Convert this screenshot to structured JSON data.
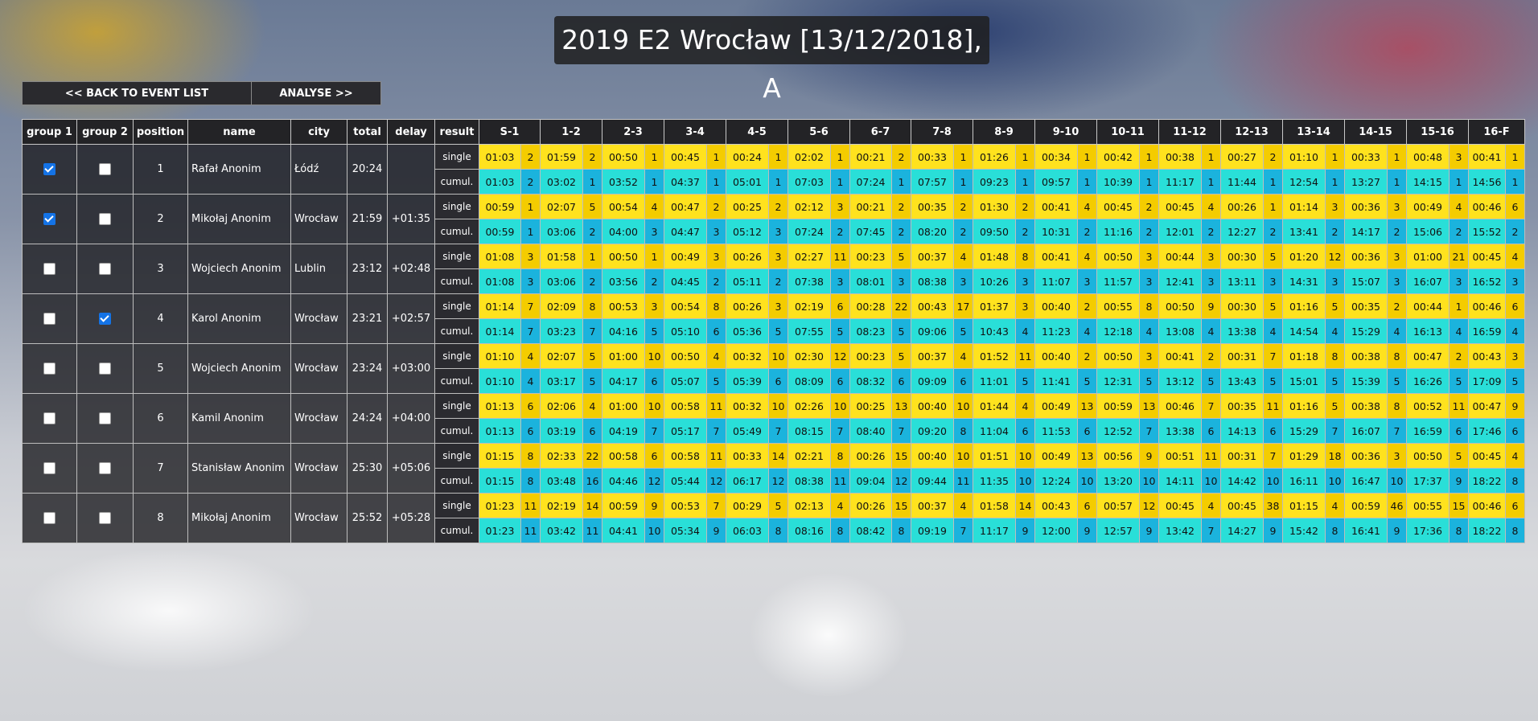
{
  "title": "2019 E2 Wrocław [13/12/2018], A",
  "nav": {
    "back_label": "<< BACK TO EVENT LIST",
    "analyse_label": "ANALYSE >>"
  },
  "headers": {
    "group1": "group 1",
    "group2": "group 2",
    "position": "position",
    "name": "name",
    "city": "city",
    "total": "total",
    "delay": "delay",
    "result": "result"
  },
  "row_labels": {
    "single": "single",
    "cumul": "cumul."
  },
  "splits": [
    "S-1",
    "1-2",
    "2-3",
    "3-4",
    "4-5",
    "5-6",
    "6-7",
    "7-8",
    "8-9",
    "9-10",
    "10-11",
    "11-12",
    "12-13",
    "13-14",
    "14-15",
    "15-16",
    "16-F"
  ],
  "colors": {
    "single_time": "#ffe21e",
    "single_place": "#f4cc00",
    "cumul_time": "#29dfd8",
    "cumul_place": "#1bb3dd",
    "checkbox_on": "#1473e6"
  },
  "runners": [
    {
      "group1": true,
      "group2": false,
      "position": "1",
      "name": "Rafał Anonim",
      "city": "Łódź",
      "total": "20:24",
      "delay": "",
      "single": [
        [
          "01:03",
          "2"
        ],
        [
          "01:59",
          "2"
        ],
        [
          "00:50",
          "1"
        ],
        [
          "00:45",
          "1"
        ],
        [
          "00:24",
          "1"
        ],
        [
          "02:02",
          "1"
        ],
        [
          "00:21",
          "2"
        ],
        [
          "00:33",
          "1"
        ],
        [
          "01:26",
          "1"
        ],
        [
          "00:34",
          "1"
        ],
        [
          "00:42",
          "1"
        ],
        [
          "00:38",
          "1"
        ],
        [
          "00:27",
          "2"
        ],
        [
          "01:10",
          "1"
        ],
        [
          "00:33",
          "1"
        ],
        [
          "00:48",
          "3"
        ],
        [
          "00:41",
          "1"
        ]
      ],
      "cumul": [
        [
          "01:03",
          "2"
        ],
        [
          "03:02",
          "1"
        ],
        [
          "03:52",
          "1"
        ],
        [
          "04:37",
          "1"
        ],
        [
          "05:01",
          "1"
        ],
        [
          "07:03",
          "1"
        ],
        [
          "07:24",
          "1"
        ],
        [
          "07:57",
          "1"
        ],
        [
          "09:23",
          "1"
        ],
        [
          "09:57",
          "1"
        ],
        [
          "10:39",
          "1"
        ],
        [
          "11:17",
          "1"
        ],
        [
          "11:44",
          "1"
        ],
        [
          "12:54",
          "1"
        ],
        [
          "13:27",
          "1"
        ],
        [
          "14:15",
          "1"
        ],
        [
          "14:56",
          "1"
        ]
      ]
    },
    {
      "group1": true,
      "group2": false,
      "position": "2",
      "name": "Mikołaj Anonim",
      "city": "Wrocław",
      "total": "21:59",
      "delay": "+01:35",
      "single": [
        [
          "00:59",
          "1"
        ],
        [
          "02:07",
          "5"
        ],
        [
          "00:54",
          "4"
        ],
        [
          "00:47",
          "2"
        ],
        [
          "00:25",
          "2"
        ],
        [
          "02:12",
          "3"
        ],
        [
          "00:21",
          "2"
        ],
        [
          "00:35",
          "2"
        ],
        [
          "01:30",
          "2"
        ],
        [
          "00:41",
          "4"
        ],
        [
          "00:45",
          "2"
        ],
        [
          "00:45",
          "4"
        ],
        [
          "00:26",
          "1"
        ],
        [
          "01:14",
          "3"
        ],
        [
          "00:36",
          "3"
        ],
        [
          "00:49",
          "4"
        ],
        [
          "00:46",
          "6"
        ]
      ],
      "cumul": [
        [
          "00:59",
          "1"
        ],
        [
          "03:06",
          "2"
        ],
        [
          "04:00",
          "3"
        ],
        [
          "04:47",
          "3"
        ],
        [
          "05:12",
          "3"
        ],
        [
          "07:24",
          "2"
        ],
        [
          "07:45",
          "2"
        ],
        [
          "08:20",
          "2"
        ],
        [
          "09:50",
          "2"
        ],
        [
          "10:31",
          "2"
        ],
        [
          "11:16",
          "2"
        ],
        [
          "12:01",
          "2"
        ],
        [
          "12:27",
          "2"
        ],
        [
          "13:41",
          "2"
        ],
        [
          "14:17",
          "2"
        ],
        [
          "15:06",
          "2"
        ],
        [
          "15:52",
          "2"
        ]
      ]
    },
    {
      "group1": false,
      "group2": false,
      "position": "3",
      "name": "Wojciech Anonim",
      "city": "Lublin",
      "total": "23:12",
      "delay": "+02:48",
      "single": [
        [
          "01:08",
          "3"
        ],
        [
          "01:58",
          "1"
        ],
        [
          "00:50",
          "1"
        ],
        [
          "00:49",
          "3"
        ],
        [
          "00:26",
          "3"
        ],
        [
          "02:27",
          "11"
        ],
        [
          "00:23",
          "5"
        ],
        [
          "00:37",
          "4"
        ],
        [
          "01:48",
          "8"
        ],
        [
          "00:41",
          "4"
        ],
        [
          "00:50",
          "3"
        ],
        [
          "00:44",
          "3"
        ],
        [
          "00:30",
          "5"
        ],
        [
          "01:20",
          "12"
        ],
        [
          "00:36",
          "3"
        ],
        [
          "01:00",
          "21"
        ],
        [
          "00:45",
          "4"
        ]
      ],
      "cumul": [
        [
          "01:08",
          "3"
        ],
        [
          "03:06",
          "2"
        ],
        [
          "03:56",
          "2"
        ],
        [
          "04:45",
          "2"
        ],
        [
          "05:11",
          "2"
        ],
        [
          "07:38",
          "3"
        ],
        [
          "08:01",
          "3"
        ],
        [
          "08:38",
          "3"
        ],
        [
          "10:26",
          "3"
        ],
        [
          "11:07",
          "3"
        ],
        [
          "11:57",
          "3"
        ],
        [
          "12:41",
          "3"
        ],
        [
          "13:11",
          "3"
        ],
        [
          "14:31",
          "3"
        ],
        [
          "15:07",
          "3"
        ],
        [
          "16:07",
          "3"
        ],
        [
          "16:52",
          "3"
        ]
      ]
    },
    {
      "group1": false,
      "group2": true,
      "position": "4",
      "name": "Karol Anonim",
      "city": "Wrocław",
      "total": "23:21",
      "delay": "+02:57",
      "single": [
        [
          "01:14",
          "7"
        ],
        [
          "02:09",
          "8"
        ],
        [
          "00:53",
          "3"
        ],
        [
          "00:54",
          "8"
        ],
        [
          "00:26",
          "3"
        ],
        [
          "02:19",
          "6"
        ],
        [
          "00:28",
          "22"
        ],
        [
          "00:43",
          "17"
        ],
        [
          "01:37",
          "3"
        ],
        [
          "00:40",
          "2"
        ],
        [
          "00:55",
          "8"
        ],
        [
          "00:50",
          "9"
        ],
        [
          "00:30",
          "5"
        ],
        [
          "01:16",
          "5"
        ],
        [
          "00:35",
          "2"
        ],
        [
          "00:44",
          "1"
        ],
        [
          "00:46",
          "6"
        ]
      ],
      "cumul": [
        [
          "01:14",
          "7"
        ],
        [
          "03:23",
          "7"
        ],
        [
          "04:16",
          "5"
        ],
        [
          "05:10",
          "6"
        ],
        [
          "05:36",
          "5"
        ],
        [
          "07:55",
          "5"
        ],
        [
          "08:23",
          "5"
        ],
        [
          "09:06",
          "5"
        ],
        [
          "10:43",
          "4"
        ],
        [
          "11:23",
          "4"
        ],
        [
          "12:18",
          "4"
        ],
        [
          "13:08",
          "4"
        ],
        [
          "13:38",
          "4"
        ],
        [
          "14:54",
          "4"
        ],
        [
          "15:29",
          "4"
        ],
        [
          "16:13",
          "4"
        ],
        [
          "16:59",
          "4"
        ]
      ]
    },
    {
      "group1": false,
      "group2": false,
      "position": "5",
      "name": "Wojciech Anonim",
      "city": "Wrocław",
      "total": "23:24",
      "delay": "+03:00",
      "single": [
        [
          "01:10",
          "4"
        ],
        [
          "02:07",
          "5"
        ],
        [
          "01:00",
          "10"
        ],
        [
          "00:50",
          "4"
        ],
        [
          "00:32",
          "10"
        ],
        [
          "02:30",
          "12"
        ],
        [
          "00:23",
          "5"
        ],
        [
          "00:37",
          "4"
        ],
        [
          "01:52",
          "11"
        ],
        [
          "00:40",
          "2"
        ],
        [
          "00:50",
          "3"
        ],
        [
          "00:41",
          "2"
        ],
        [
          "00:31",
          "7"
        ],
        [
          "01:18",
          "8"
        ],
        [
          "00:38",
          "8"
        ],
        [
          "00:47",
          "2"
        ],
        [
          "00:43",
          "3"
        ]
      ],
      "cumul": [
        [
          "01:10",
          "4"
        ],
        [
          "03:17",
          "5"
        ],
        [
          "04:17",
          "6"
        ],
        [
          "05:07",
          "5"
        ],
        [
          "05:39",
          "6"
        ],
        [
          "08:09",
          "6"
        ],
        [
          "08:32",
          "6"
        ],
        [
          "09:09",
          "6"
        ],
        [
          "11:01",
          "5"
        ],
        [
          "11:41",
          "5"
        ],
        [
          "12:31",
          "5"
        ],
        [
          "13:12",
          "5"
        ],
        [
          "13:43",
          "5"
        ],
        [
          "15:01",
          "5"
        ],
        [
          "15:39",
          "5"
        ],
        [
          "16:26",
          "5"
        ],
        [
          "17:09",
          "5"
        ]
      ]
    },
    {
      "group1": false,
      "group2": false,
      "position": "6",
      "name": "Kamil Anonim",
      "city": "Wrocław",
      "total": "24:24",
      "delay": "+04:00",
      "single": [
        [
          "01:13",
          "6"
        ],
        [
          "02:06",
          "4"
        ],
        [
          "01:00",
          "10"
        ],
        [
          "00:58",
          "11"
        ],
        [
          "00:32",
          "10"
        ],
        [
          "02:26",
          "10"
        ],
        [
          "00:25",
          "13"
        ],
        [
          "00:40",
          "10"
        ],
        [
          "01:44",
          "4"
        ],
        [
          "00:49",
          "13"
        ],
        [
          "00:59",
          "13"
        ],
        [
          "00:46",
          "7"
        ],
        [
          "00:35",
          "11"
        ],
        [
          "01:16",
          "5"
        ],
        [
          "00:38",
          "8"
        ],
        [
          "00:52",
          "11"
        ],
        [
          "00:47",
          "9"
        ]
      ],
      "cumul": [
        [
          "01:13",
          "6"
        ],
        [
          "03:19",
          "6"
        ],
        [
          "04:19",
          "7"
        ],
        [
          "05:17",
          "7"
        ],
        [
          "05:49",
          "7"
        ],
        [
          "08:15",
          "7"
        ],
        [
          "08:40",
          "7"
        ],
        [
          "09:20",
          "8"
        ],
        [
          "11:04",
          "6"
        ],
        [
          "11:53",
          "6"
        ],
        [
          "12:52",
          "7"
        ],
        [
          "13:38",
          "6"
        ],
        [
          "14:13",
          "6"
        ],
        [
          "15:29",
          "7"
        ],
        [
          "16:07",
          "7"
        ],
        [
          "16:59",
          "6"
        ],
        [
          "17:46",
          "6"
        ]
      ]
    },
    {
      "group1": false,
      "group2": false,
      "position": "7",
      "name": "Stanisław Anonim",
      "city": "Wrocław",
      "total": "25:30",
      "delay": "+05:06",
      "single": [
        [
          "01:15",
          "8"
        ],
        [
          "02:33",
          "22"
        ],
        [
          "00:58",
          "6"
        ],
        [
          "00:58",
          "11"
        ],
        [
          "00:33",
          "14"
        ],
        [
          "02:21",
          "8"
        ],
        [
          "00:26",
          "15"
        ],
        [
          "00:40",
          "10"
        ],
        [
          "01:51",
          "10"
        ],
        [
          "00:49",
          "13"
        ],
        [
          "00:56",
          "9"
        ],
        [
          "00:51",
          "11"
        ],
        [
          "00:31",
          "7"
        ],
        [
          "01:29",
          "18"
        ],
        [
          "00:36",
          "3"
        ],
        [
          "00:50",
          "5"
        ],
        [
          "00:45",
          "4"
        ]
      ],
      "cumul": [
        [
          "01:15",
          "8"
        ],
        [
          "03:48",
          "16"
        ],
        [
          "04:46",
          "12"
        ],
        [
          "05:44",
          "12"
        ],
        [
          "06:17",
          "12"
        ],
        [
          "08:38",
          "11"
        ],
        [
          "09:04",
          "12"
        ],
        [
          "09:44",
          "11"
        ],
        [
          "11:35",
          "10"
        ],
        [
          "12:24",
          "10"
        ],
        [
          "13:20",
          "10"
        ],
        [
          "14:11",
          "10"
        ],
        [
          "14:42",
          "10"
        ],
        [
          "16:11",
          "10"
        ],
        [
          "16:47",
          "10"
        ],
        [
          "17:37",
          "9"
        ],
        [
          "18:22",
          "8"
        ]
      ]
    },
    {
      "group1": false,
      "group2": false,
      "position": "8",
      "name": "Mikołaj Anonim",
      "city": "Wrocław",
      "total": "25:52",
      "delay": "+05:28",
      "single": [
        [
          "01:23",
          "11"
        ],
        [
          "02:19",
          "14"
        ],
        [
          "00:59",
          "9"
        ],
        [
          "00:53",
          "7"
        ],
        [
          "00:29",
          "5"
        ],
        [
          "02:13",
          "4"
        ],
        [
          "00:26",
          "15"
        ],
        [
          "00:37",
          "4"
        ],
        [
          "01:58",
          "14"
        ],
        [
          "00:43",
          "6"
        ],
        [
          "00:57",
          "12"
        ],
        [
          "00:45",
          "4"
        ],
        [
          "00:45",
          "38"
        ],
        [
          "01:15",
          "4"
        ],
        [
          "00:59",
          "46"
        ],
        [
          "00:55",
          "15"
        ],
        [
          "00:46",
          "6"
        ]
      ],
      "cumul": [
        [
          "01:23",
          "11"
        ],
        [
          "03:42",
          "11"
        ],
        [
          "04:41",
          "10"
        ],
        [
          "05:34",
          "9"
        ],
        [
          "06:03",
          "8"
        ],
        [
          "08:16",
          "8"
        ],
        [
          "08:42",
          "8"
        ],
        [
          "09:19",
          "7"
        ],
        [
          "11:17",
          "9"
        ],
        [
          "12:00",
          "9"
        ],
        [
          "12:57",
          "9"
        ],
        [
          "13:42",
          "7"
        ],
        [
          "14:27",
          "9"
        ],
        [
          "15:42",
          "8"
        ],
        [
          "16:41",
          "9"
        ],
        [
          "17:36",
          "8"
        ],
        [
          "18:22",
          "8"
        ]
      ]
    }
  ]
}
